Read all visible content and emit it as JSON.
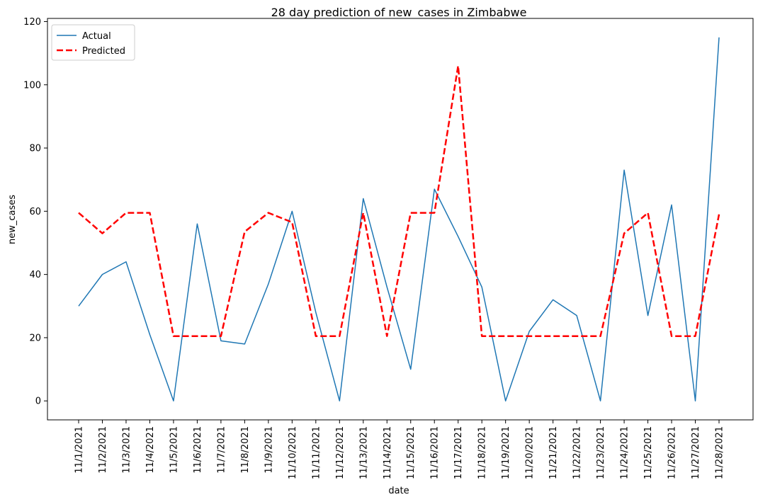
{
  "chart_data": {
    "type": "line",
    "title": "28 day prediction of new_cases in Zimbabwe",
    "xlabel": "date",
    "ylabel": "new_cases",
    "ylim": [
      -6,
      121
    ],
    "yticks": [
      0,
      20,
      40,
      60,
      80,
      100,
      120
    ],
    "grid": false,
    "legend_position": "top-left",
    "categories": [
      "11/1/2021",
      "11/2/2021",
      "11/3/2021",
      "11/4/2021",
      "11/5/2021",
      "11/6/2021",
      "11/7/2021",
      "11/8/2021",
      "11/9/2021",
      "11/10/2021",
      "11/11/2021",
      "11/12/2021",
      "11/13/2021",
      "11/14/2021",
      "11/15/2021",
      "11/16/2021",
      "11/17/2021",
      "11/18/2021",
      "11/19/2021",
      "11/20/2021",
      "11/21/2021",
      "11/22/2021",
      "11/23/2021",
      "11/24/2021",
      "11/25/2021",
      "11/26/2021",
      "11/27/2021",
      "11/28/2021"
    ],
    "series": [
      {
        "name": "Actual",
        "color": "#1f77b4",
        "style": "solid",
        "values": [
          30,
          40,
          44,
          21,
          0,
          56,
          19,
          18,
          37,
          60,
          28,
          0,
          64,
          36,
          10,
          67,
          52,
          36,
          0,
          22,
          32,
          27,
          0,
          73,
          27,
          62,
          0,
          115
        ]
      },
      {
        "name": "Predicted",
        "color": "#ff0000",
        "style": "dashed",
        "values": [
          59.5,
          53,
          59.5,
          59.5,
          20.5,
          20.5,
          20.5,
          53.5,
          59.5,
          56.5,
          20.5,
          20.5,
          59.5,
          20.5,
          59.5,
          59.5,
          106,
          20.5,
          20.5,
          20.5,
          20.5,
          20.5,
          20.5,
          53,
          59.5,
          20.5,
          20.5,
          59
        ]
      }
    ]
  }
}
